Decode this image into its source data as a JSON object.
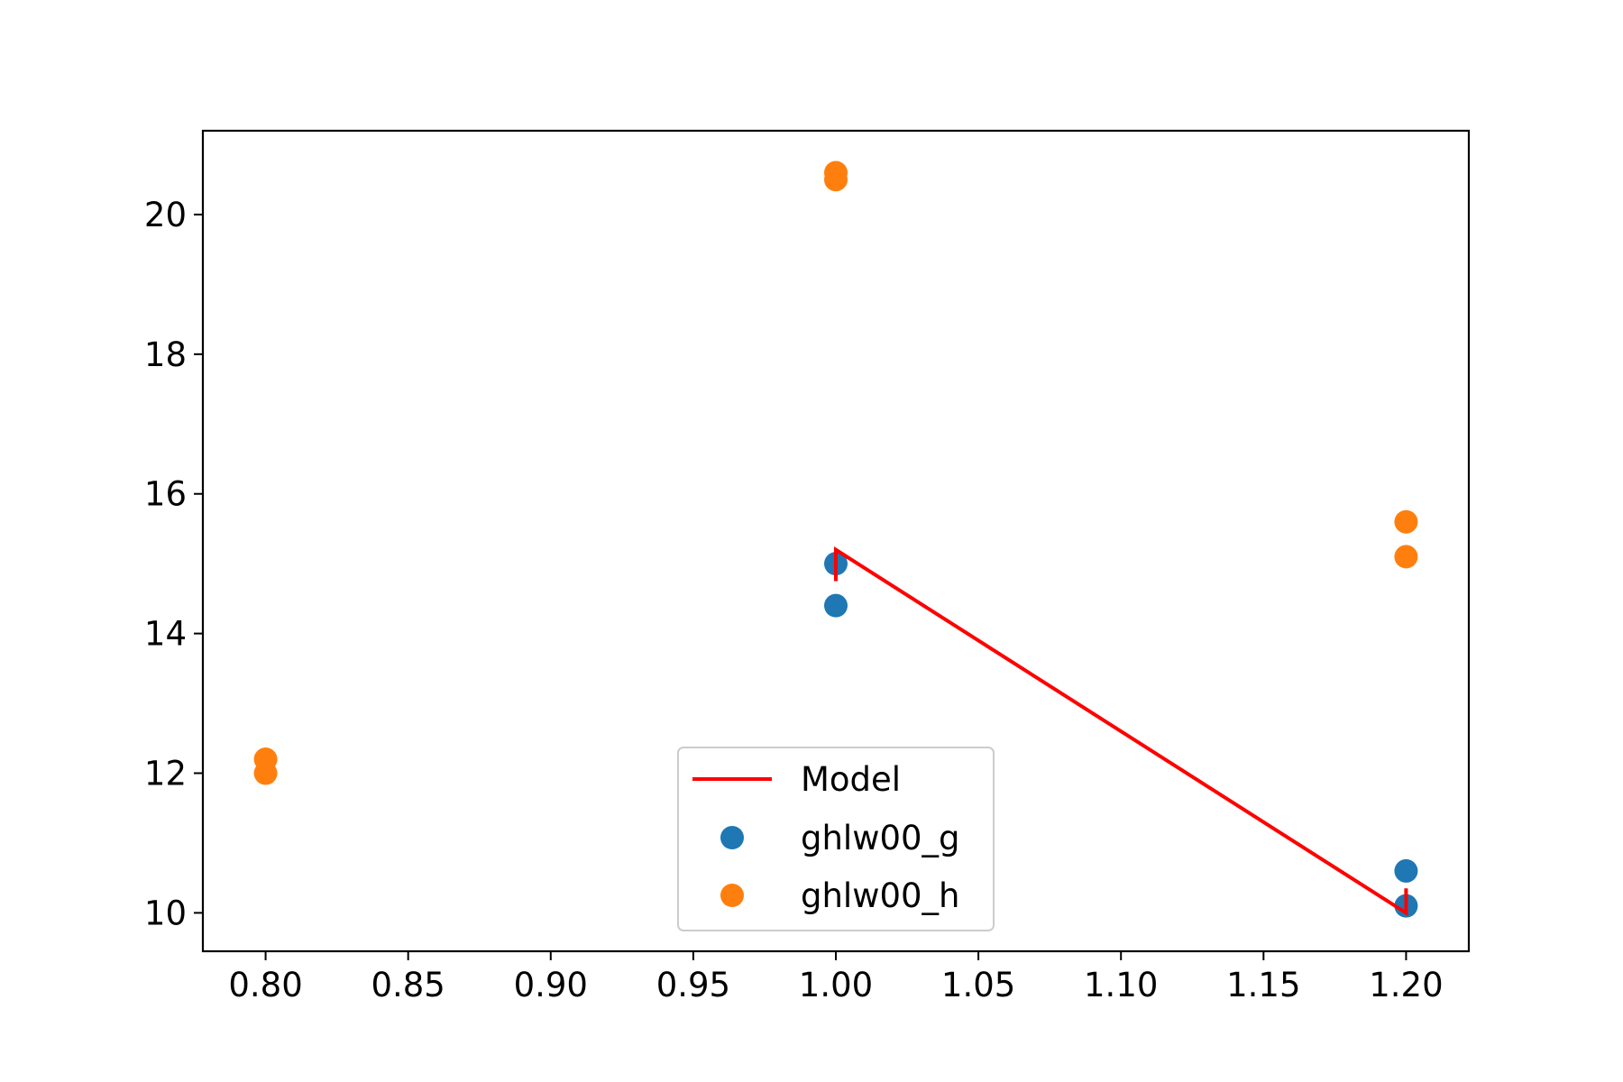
{
  "chart_data": {
    "type": "scatter",
    "title": "",
    "xlabel": "",
    "ylabel": "",
    "xlim": [
      0.778,
      1.222
    ],
    "ylim": [
      9.45,
      21.2
    ],
    "grid": false,
    "legend_position": "bottom-center",
    "x_ticks": [
      "0.80",
      "0.85",
      "0.90",
      "0.95",
      "1.00",
      "1.05",
      "1.10",
      "1.15",
      "1.20"
    ],
    "x_tick_values": [
      0.8,
      0.85,
      0.9,
      0.95,
      1.0,
      1.05,
      1.1,
      1.15,
      1.2
    ],
    "y_ticks": [
      "10",
      "12",
      "14",
      "16",
      "18",
      "20"
    ],
    "y_tick_values": [
      10,
      12,
      14,
      16,
      18,
      20
    ],
    "line_series": [
      {
        "name": "Model",
        "color": "#ff0000",
        "x": [
          1.0,
          1.0,
          1.2,
          1.2
        ],
        "y": [
          14.75,
          15.2,
          10.0,
          10.35
        ]
      }
    ],
    "scatter_series": [
      {
        "name": "ghlw00_g",
        "color": "#1f77b4",
        "x": [
          1.0,
          1.0,
          1.2,
          1.2
        ],
        "y": [
          15.0,
          14.4,
          10.6,
          10.1
        ]
      },
      {
        "name": "ghlw00_h",
        "color": "#ff7f0e",
        "x": [
          0.8,
          0.8,
          1.0,
          1.0,
          1.2,
          1.2
        ],
        "y": [
          12.2,
          12.0,
          20.6,
          20.5,
          15.6,
          15.1
        ]
      }
    ],
    "legend": [
      "Model",
      "ghlw00_g",
      "ghlw00_h"
    ]
  }
}
